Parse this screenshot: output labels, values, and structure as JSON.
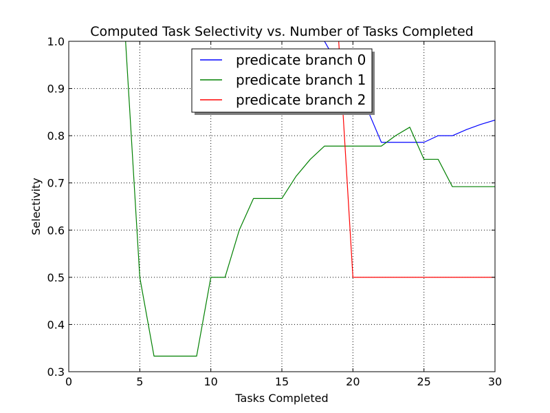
{
  "chart_data": {
    "type": "line",
    "title": "Computed Task Selectivity vs. Number of Tasks Completed",
    "xlabel": "Tasks Completed",
    "ylabel": "Selectivity",
    "xlim": [
      0,
      30
    ],
    "ylim": [
      0.3,
      1.0
    ],
    "xticks": [
      0,
      5,
      10,
      15,
      20,
      25,
      30
    ],
    "yticks": [
      0.3,
      0.4,
      0.5,
      0.6,
      0.7,
      0.8,
      0.9,
      1.0
    ],
    "xtick_labels": [
      "0",
      "5",
      "10",
      "15",
      "20",
      "25",
      "30"
    ],
    "ytick_labels": [
      "0.3",
      "0.4",
      "0.5",
      "0.6",
      "0.7",
      "0.8",
      "0.9",
      "1.0"
    ],
    "grid": true,
    "legend_position": "top-center",
    "series": [
      {
        "name": "predicate branch 0",
        "color": "#0000ff",
        "x": [
          18,
          19,
          20,
          21,
          22,
          23,
          24,
          25,
          26,
          27,
          28,
          29,
          30
        ],
        "y": [
          1.0,
          0.947,
          0.9,
          0.857,
          0.786,
          0.786,
          0.786,
          0.786,
          0.8,
          0.8,
          0.813,
          0.824,
          0.833
        ]
      },
      {
        "name": "predicate branch 1",
        "color": "#008000",
        "x": [
          4,
          5,
          6,
          7,
          8,
          9,
          10,
          11,
          12,
          13,
          14,
          15,
          16,
          17,
          18,
          19,
          20,
          21,
          22,
          23,
          24,
          25,
          26,
          27,
          28,
          29,
          30
        ],
        "y": [
          1.0,
          0.5,
          0.333,
          0.333,
          0.333,
          0.333,
          0.5,
          0.5,
          0.6,
          0.667,
          0.667,
          0.667,
          0.714,
          0.75,
          0.778,
          0.778,
          0.778,
          0.778,
          0.778,
          0.8,
          0.818,
          0.75,
          0.75,
          0.692,
          0.692,
          0.692,
          0.692
        ]
      },
      {
        "name": "predicate branch 2",
        "color": "#ff0000",
        "x": [
          19,
          20,
          21,
          22,
          23,
          24,
          25,
          26,
          27,
          28,
          29,
          30
        ],
        "y": [
          1.0,
          0.5,
          0.5,
          0.5,
          0.5,
          0.5,
          0.5,
          0.5,
          0.5,
          0.5,
          0.5,
          0.5
        ]
      }
    ]
  }
}
